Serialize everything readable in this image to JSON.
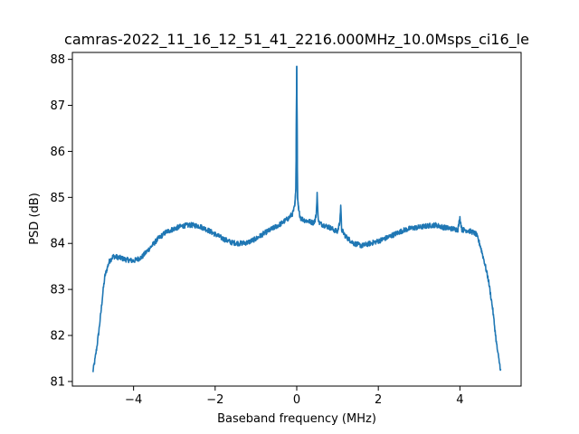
{
  "chart_data": {
    "type": "line",
    "title": "camras-2022_11_16_12_51_41_2216.000MHz_10.0Msps_ci16_le",
    "xlabel": "Baseband frequency (MHz)",
    "ylabel": "PSD (dB)",
    "xlim": [
      -5.5,
      5.5
    ],
    "ylim": [
      80.9,
      88.15
    ],
    "xticks": [
      -4,
      -2,
      0,
      2,
      4
    ],
    "xtick_labels": [
      "−4",
      "−2",
      "0",
      "2",
      "4"
    ],
    "yticks": [
      81,
      82,
      83,
      84,
      85,
      86,
      87,
      88
    ],
    "ytick_labels": [
      "81",
      "82",
      "83",
      "84",
      "85",
      "86",
      "87",
      "88"
    ],
    "grid": false,
    "series_color": "#1f77b4",
    "series": [
      {
        "x": [
          -5.0,
          -4.95,
          -4.9,
          -4.85,
          -4.8,
          -4.75,
          -4.7,
          -4.6,
          -4.5,
          -4.4,
          -4.3,
          -4.2,
          -4.0,
          -3.8,
          -3.6,
          -3.4,
          -3.2,
          -3.0,
          -2.8,
          -2.6,
          -2.4,
          -2.2,
          -2.0,
          -1.8,
          -1.6,
          -1.4,
          -1.2,
          -1.0,
          -0.8,
          -0.6,
          -0.4,
          -0.2,
          -0.1,
          -0.05,
          -0.02,
          0.0,
          0.02,
          0.05,
          0.1,
          0.2,
          0.3,
          0.4,
          0.45,
          0.48,
          0.5,
          0.52,
          0.55,
          0.6,
          0.8,
          1.0,
          1.05,
          1.08,
          1.1,
          1.2,
          1.4,
          1.6,
          1.8,
          2.0,
          2.2,
          2.4,
          2.6,
          2.8,
          3.0,
          3.2,
          3.4,
          3.6,
          3.8,
          3.95,
          4.0,
          4.05,
          4.2,
          4.3,
          4.4,
          4.5,
          4.6,
          4.7,
          4.8,
          4.85,
          4.9,
          4.95,
          5.0
        ],
        "y": [
          81.2,
          81.45,
          81.75,
          82.1,
          82.5,
          82.95,
          83.3,
          83.6,
          83.72,
          83.7,
          83.68,
          83.65,
          83.62,
          83.7,
          83.9,
          84.1,
          84.25,
          84.32,
          84.38,
          84.4,
          84.38,
          84.3,
          84.2,
          84.1,
          84.02,
          84.0,
          84.02,
          84.1,
          84.22,
          84.32,
          84.42,
          84.55,
          84.65,
          84.8,
          85.2,
          87.85,
          85.0,
          84.7,
          84.55,
          84.5,
          84.48,
          84.45,
          84.5,
          84.65,
          85.1,
          84.6,
          84.45,
          84.42,
          84.35,
          84.25,
          84.45,
          84.8,
          84.3,
          84.15,
          84.0,
          83.95,
          84.0,
          84.05,
          84.12,
          84.2,
          84.28,
          84.33,
          84.35,
          84.38,
          84.4,
          84.35,
          84.32,
          84.3,
          84.55,
          84.3,
          84.28,
          84.25,
          84.2,
          83.95,
          83.6,
          83.2,
          82.6,
          82.2,
          81.8,
          81.5,
          81.25
        ]
      }
    ]
  }
}
